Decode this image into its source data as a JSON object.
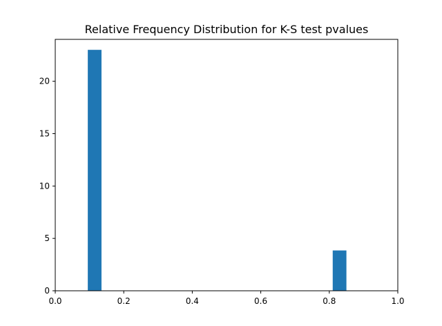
{
  "chart_data": {
    "type": "bar",
    "title": "Relative Frequency Distribution for K-S test pvalues",
    "xlabel": "",
    "ylabel": "",
    "xlim": [
      0.0,
      1.0
    ],
    "ylim": [
      0,
      24
    ],
    "x_ticks": [
      "0.0",
      "0.2",
      "0.4",
      "0.6",
      "0.8",
      "1.0"
    ],
    "y_ticks": [
      "0",
      "5",
      "10",
      "15",
      "20"
    ],
    "grid": false,
    "bar_color": "#1f77b4",
    "bins": [
      {
        "x0": 0.095,
        "x1": 0.135,
        "value": 23
      },
      {
        "x0": 0.81,
        "x1": 0.85,
        "value": 3.85
      }
    ]
  }
}
